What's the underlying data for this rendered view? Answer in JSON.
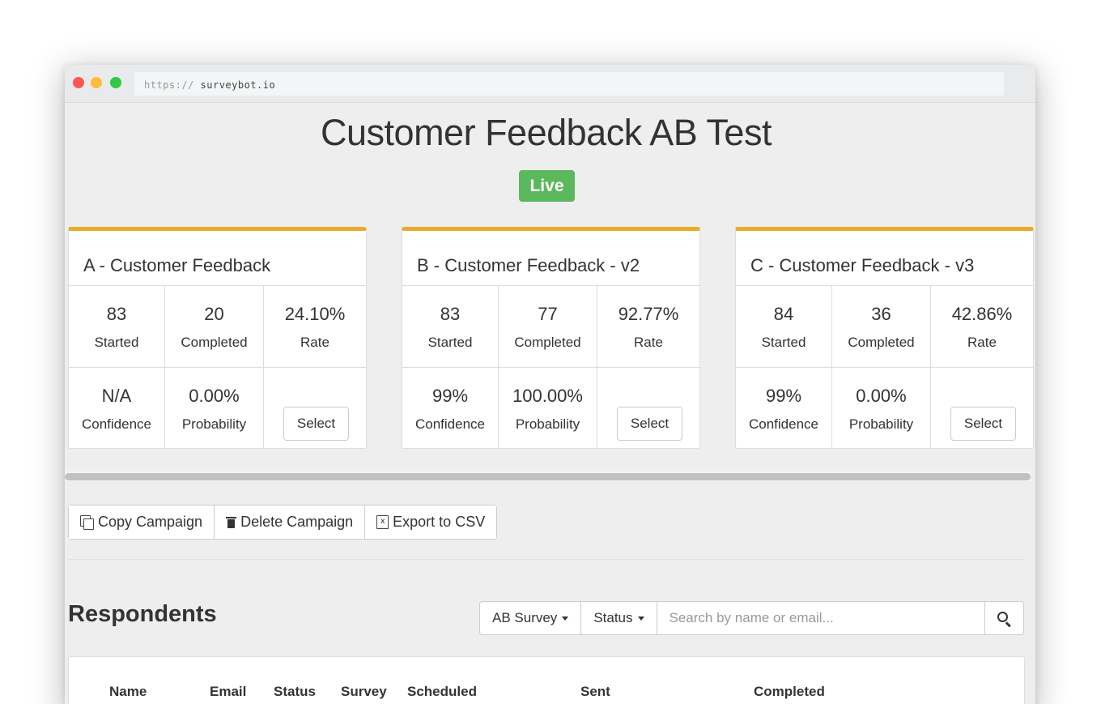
{
  "browser": {
    "url_scheme": "https://",
    "url_host": "surveybot.io"
  },
  "page": {
    "title": "Customer Feedback AB Test",
    "status": "Live"
  },
  "variants": [
    {
      "title": "A - Customer Feedback",
      "started": "83",
      "started_label": "Started",
      "completed": "20",
      "completed_label": "Completed",
      "rate": "24.10%",
      "rate_label": "Rate",
      "confidence": "N/A",
      "confidence_label": "Confidence",
      "probability": "0.00%",
      "probability_label": "Probability",
      "select_label": "Select"
    },
    {
      "title": "B - Customer Feedback - v2",
      "started": "83",
      "started_label": "Started",
      "completed": "77",
      "completed_label": "Completed",
      "rate": "92.77%",
      "rate_label": "Rate",
      "confidence": "99%",
      "confidence_label": "Confidence",
      "probability": "100.00%",
      "probability_label": "Probability",
      "select_label": "Select"
    },
    {
      "title": "C - Customer Feedback - v3",
      "started": "84",
      "started_label": "Started",
      "completed": "36",
      "completed_label": "Completed",
      "rate": "42.86%",
      "rate_label": "Rate",
      "confidence": "99%",
      "confidence_label": "Confidence",
      "probability": "0.00%",
      "probability_label": "Probability",
      "select_label": "Select"
    }
  ],
  "actions": {
    "copy_label": "Copy Campaign",
    "delete_label": "Delete Campaign",
    "export_label": "Export to CSV"
  },
  "respondents": {
    "title": "Respondents",
    "survey_filter": "AB Survey",
    "status_filter": "Status",
    "search_placeholder": "Search by name or email...",
    "columns": [
      "Name",
      "Email",
      "Status",
      "Survey",
      "Scheduled",
      "Sent",
      "Completed"
    ]
  },
  "icons": {
    "copy": "copy-icon",
    "delete": "trash-icon",
    "export": "csv-file-icon",
    "search": "search-icon"
  },
  "colors": {
    "live_badge": "#5cb85c",
    "card_accent": "#e8ac2b"
  }
}
